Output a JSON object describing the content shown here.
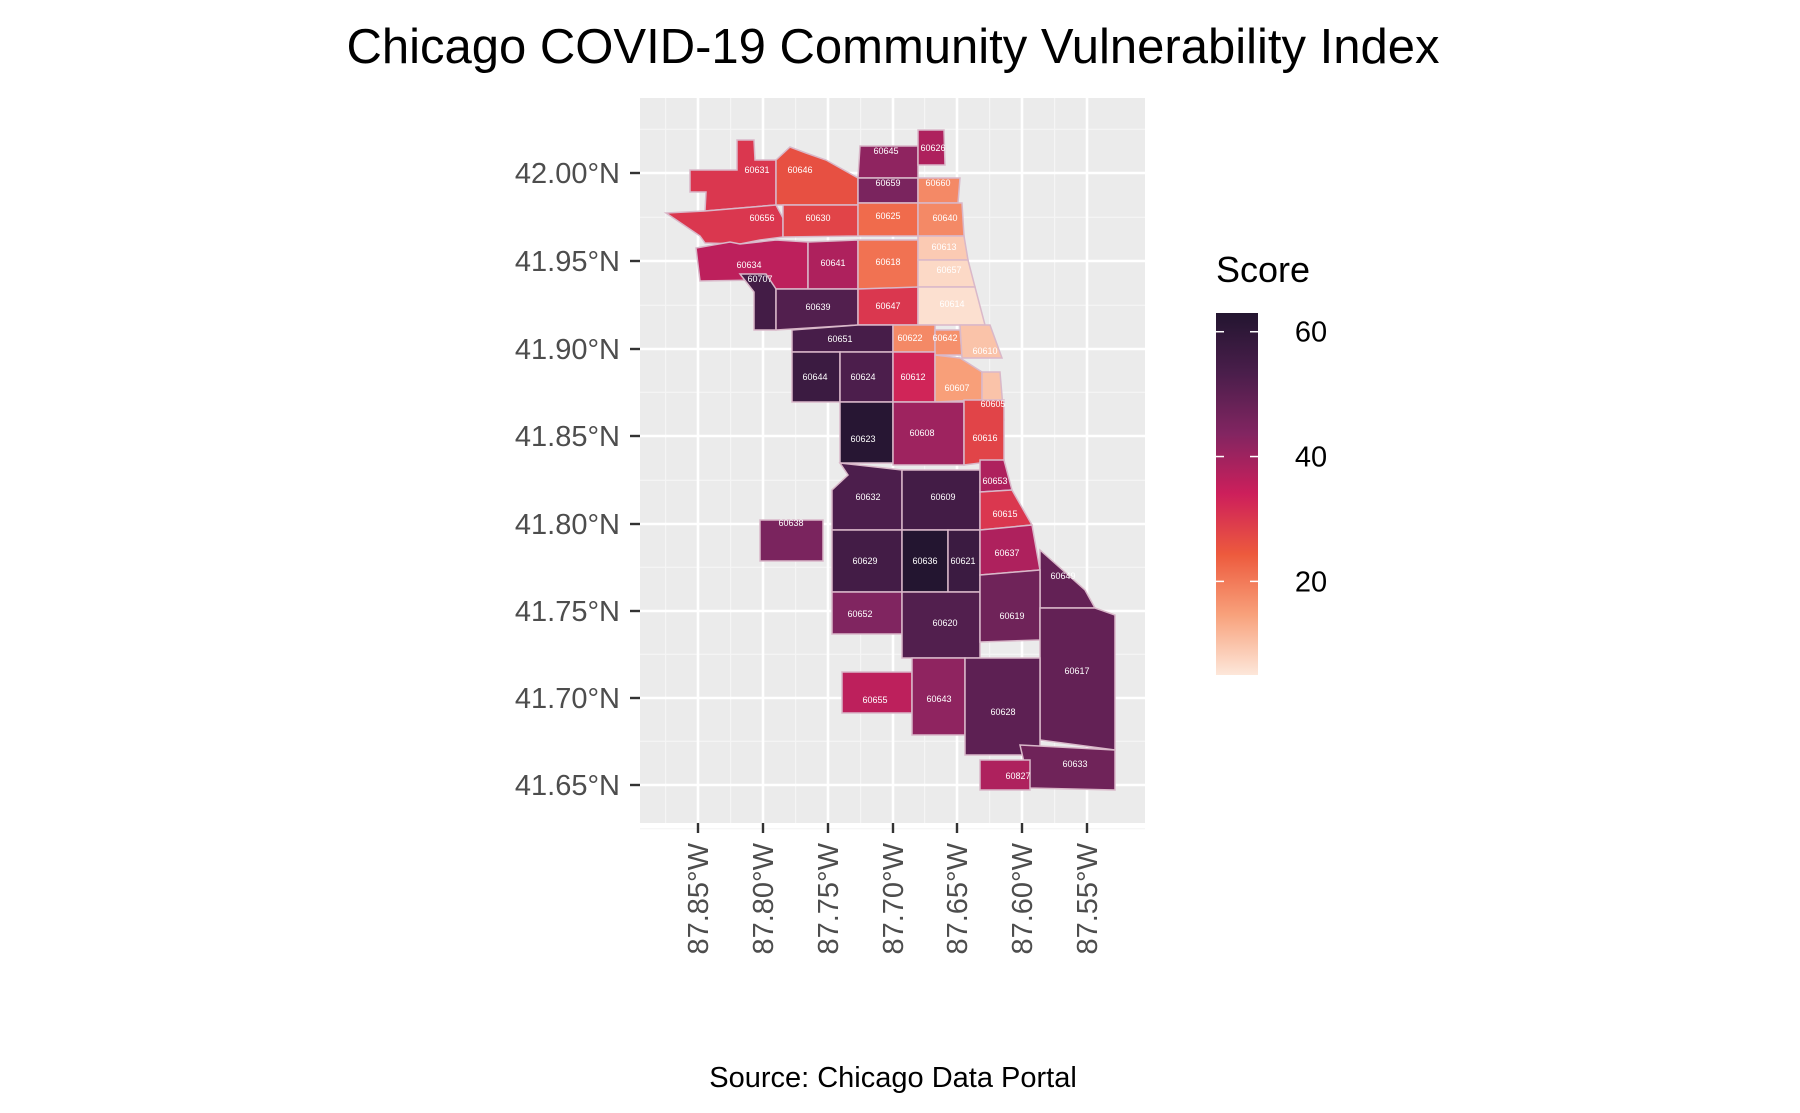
{
  "chart_data": {
    "type": "choropleth",
    "title": "Chicago COVID-19 Community Vulnerability Index",
    "caption": "Source: Chicago Data Portal",
    "legend": {
      "title": "Score",
      "placement": "right",
      "min": 5,
      "max": 63,
      "ticks": [
        20,
        40,
        60
      ],
      "tick_labels": [
        "20",
        "40",
        "60"
      ],
      "colors": [
        "#fde7da",
        "#f8a17b",
        "#ed5a3d",
        "#cd1f5b",
        "#822561",
        "#4a1e4b",
        "#231530"
      ]
    },
    "x_axis": {
      "ticks": [
        -87.85,
        -87.8,
        -87.75,
        -87.7,
        -87.65,
        -87.6,
        -87.55
      ],
      "tick_labels": [
        "87.85°W",
        "87.80°W",
        "87.75°W",
        "87.70°W",
        "87.65°W",
        "87.60°W",
        "87.55°W"
      ]
    },
    "y_axis": {
      "ticks": [
        41.65,
        41.7,
        41.75,
        41.8,
        41.85,
        41.9,
        41.95,
        42.0
      ],
      "tick_labels": [
        "41.65°N",
        "41.70°N",
        "41.75°N",
        "41.80°N",
        "41.85°N",
        "41.90°N",
        "41.95°N",
        "42.00°N"
      ]
    },
    "panel_background": "#ebebeb",
    "grid": true,
    "regions": [
      {
        "zip": "60631",
        "score": 30
      },
      {
        "zip": "60646",
        "score": 26
      },
      {
        "zip": "60645",
        "score": 42
      },
      {
        "zip": "60626",
        "score": 38
      },
      {
        "zip": "60659",
        "score": 45
      },
      {
        "zip": "60660",
        "score": 18
      },
      {
        "zip": "60656",
        "score": 30
      },
      {
        "zip": "60630",
        "score": 28
      },
      {
        "zip": "60625",
        "score": 22
      },
      {
        "zip": "60640",
        "score": 18
      },
      {
        "zip": "60634",
        "score": 36
      },
      {
        "zip": "60707",
        "score": 55
      },
      {
        "zip": "60641",
        "score": 38
      },
      {
        "zip": "60618",
        "score": 21
      },
      {
        "zip": "60613",
        "score": 9
      },
      {
        "zip": "60657",
        "score": 7
      },
      {
        "zip": "60639",
        "score": 52
      },
      {
        "zip": "60647",
        "score": 30
      },
      {
        "zip": "60614",
        "score": 6
      },
      {
        "zip": "60651",
        "score": 54
      },
      {
        "zip": "60622",
        "score": 18
      },
      {
        "zip": "60642",
        "score": 17
      },
      {
        "zip": "60610",
        "score": 10
      },
      {
        "zip": "60644",
        "score": 57
      },
      {
        "zip": "60624",
        "score": 53
      },
      {
        "zip": "60612",
        "score": 33
      },
      {
        "zip": "60607",
        "score": 15
      },
      {
        "zip": "60605",
        "score": 10
      },
      {
        "zip": "60623",
        "score": 62
      },
      {
        "zip": "60608",
        "score": 40
      },
      {
        "zip": "60616",
        "score": 28
      },
      {
        "zip": "60632",
        "score": 53
      },
      {
        "zip": "60609",
        "score": 55
      },
      {
        "zip": "60653",
        "score": 38
      },
      {
        "zip": "60638",
        "score": 45
      },
      {
        "zip": "60615",
        "score": 30
      },
      {
        "zip": "60629",
        "score": 55
      },
      {
        "zip": "60636",
        "score": 63
      },
      {
        "zip": "60621",
        "score": 57
      },
      {
        "zip": "60637",
        "score": 38
      },
      {
        "zip": "60649",
        "score": 49
      },
      {
        "zip": "60652",
        "score": 44
      },
      {
        "zip": "60620",
        "score": 52
      },
      {
        "zip": "60619",
        "score": 47
      },
      {
        "zip": "60617",
        "score": 49
      },
      {
        "zip": "60655",
        "score": 36
      },
      {
        "zip": "60643",
        "score": 42
      },
      {
        "zip": "60628",
        "score": 50
      },
      {
        "zip": "60633",
        "score": 47
      },
      {
        "zip": "60827",
        "score": 38
      }
    ]
  }
}
